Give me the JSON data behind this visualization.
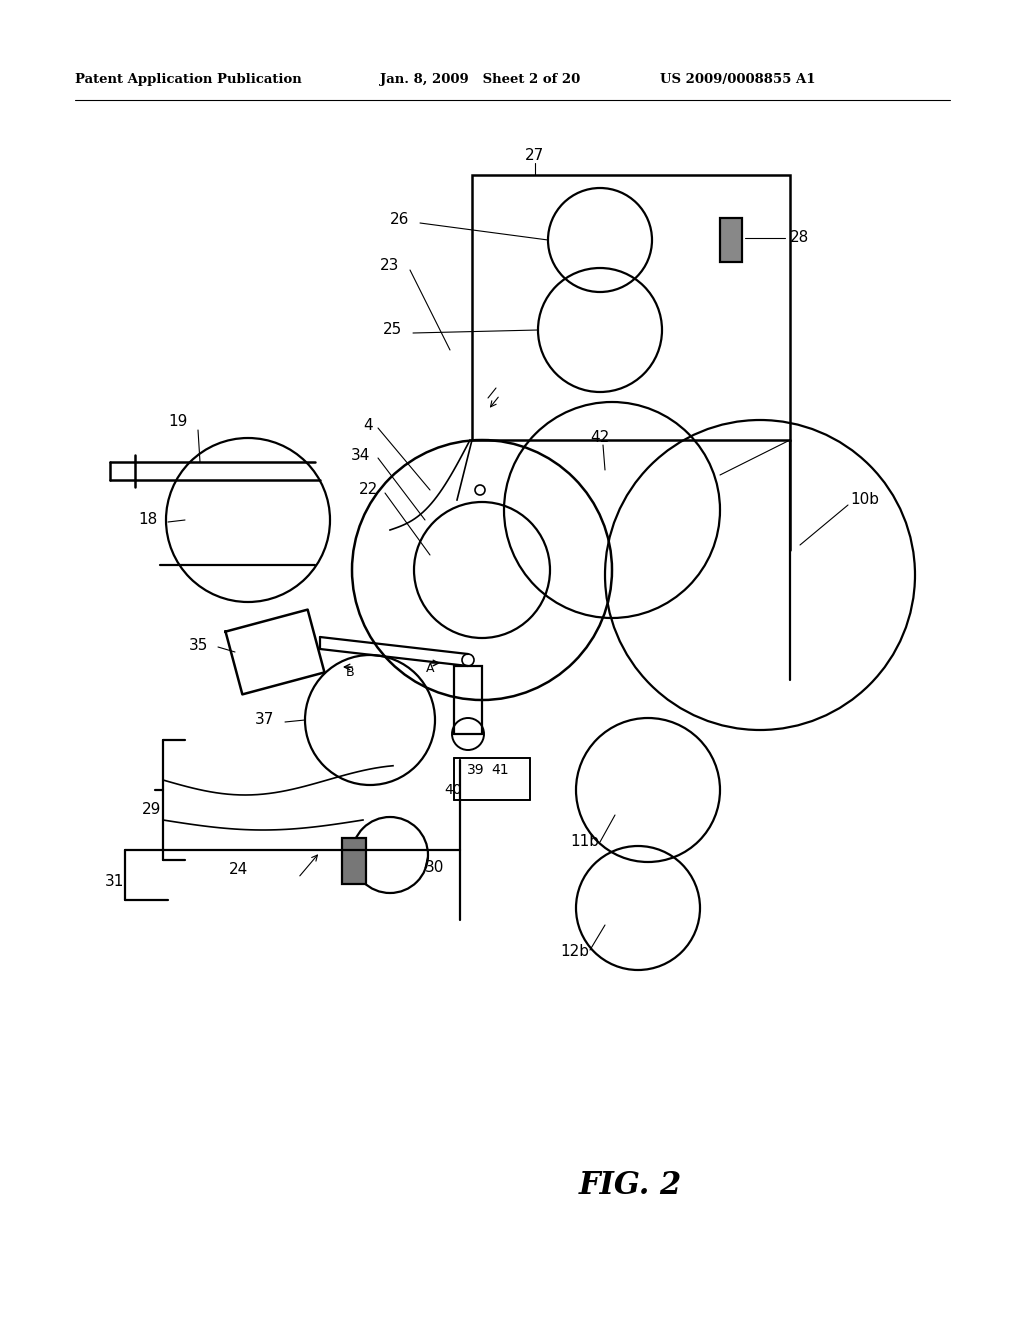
{
  "title": "FIG. 2",
  "header_left": "Patent Application Publication",
  "header_mid": "Jan. 8, 2009   Sheet 2 of 20",
  "header_right": "US 2009/0008855 A1",
  "bg_color": "#ffffff",
  "line_color": "#000000",
  "fig_width": 10.24,
  "fig_height": 13.2,
  "dpi": 100
}
